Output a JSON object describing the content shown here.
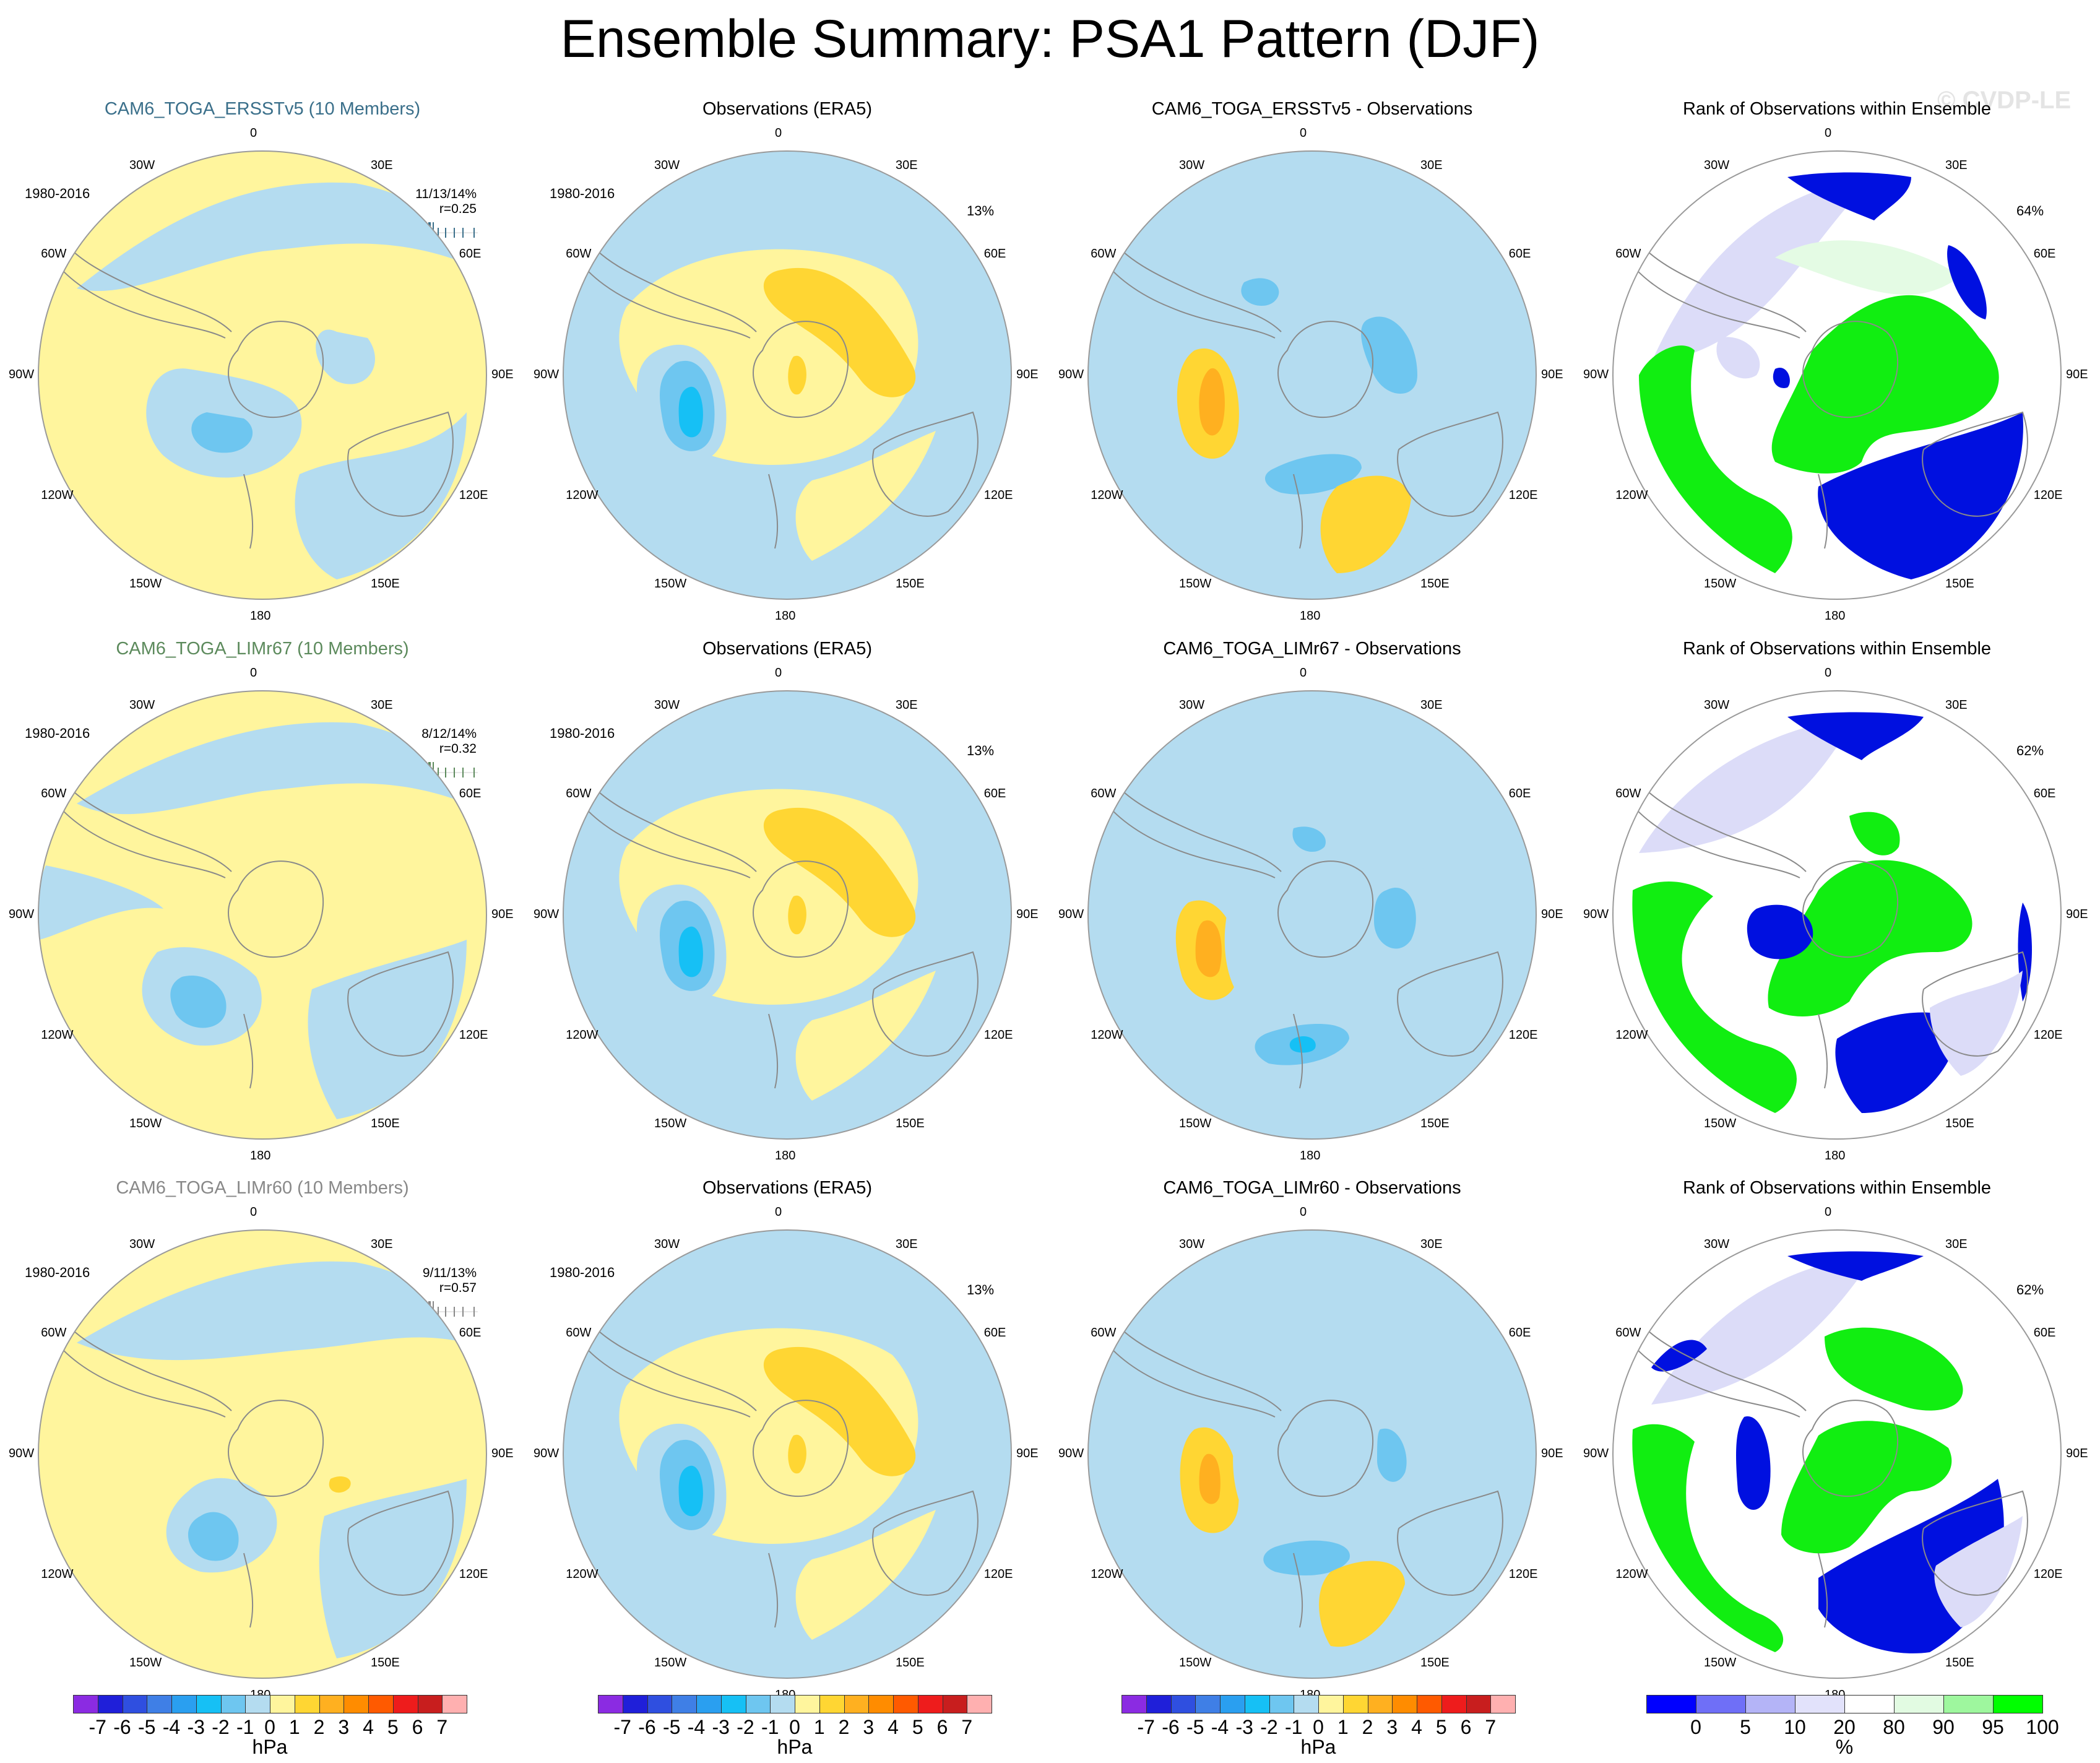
{
  "figure": {
    "title": "Ensemble Summary: PSA1 Pattern (DJF)",
    "watermark": "© CVDP-LE"
  },
  "colors": {
    "title_ensemble_1": "#3a6f8a",
    "title_ensemble_2": "#5c8a5c",
    "title_ensemble_3": "#888888",
    "land_outline": "#8a8a8a",
    "map_border": "#9a9a9a"
  },
  "longitude_labels": [
    "0",
    "30E",
    "60E",
    "90E",
    "120E",
    "150E",
    "180",
    "150W",
    "120W",
    "90W",
    "60W",
    "30W"
  ],
  "rows": [
    {
      "ensemble": {
        "title": "CAM6_TOGA_ERSSTv5 (10 Members)",
        "period": "1980-2016",
        "stat_line1": "11/13/14%",
        "stat_line2": "r=0.25",
        "color_key": "title_ensemble_1"
      },
      "observations": {
        "title": "Observations (ERA5)",
        "period": "1980-2016",
        "pct": "13%"
      },
      "difference": {
        "title": "CAM6_TOGA_ERSSTv5 - Observations"
      },
      "rank": {
        "title": "Rank of Observations within Ensemble",
        "pct": "64%"
      }
    },
    {
      "ensemble": {
        "title": "CAM6_TOGA_LIMr67 (10 Members)",
        "period": "1980-2016",
        "stat_line1": "8/12/14%",
        "stat_line2": "r=0.32",
        "color_key": "title_ensemble_2"
      },
      "observations": {
        "title": "Observations (ERA5)",
        "period": "1980-2016",
        "pct": "13%"
      },
      "difference": {
        "title": "CAM6_TOGA_LIMr67 - Observations"
      },
      "rank": {
        "title": "Rank of Observations within Ensemble",
        "pct": "62%"
      }
    },
    {
      "ensemble": {
        "title": "CAM6_TOGA_LIMr60 (10 Members)",
        "period": "1980-2016",
        "stat_line1": "9/11/13%",
        "stat_line2": "r=0.57",
        "color_key": "title_ensemble_3"
      },
      "observations": {
        "title": "Observations (ERA5)",
        "period": "1980-2016",
        "pct": "13%"
      },
      "difference": {
        "title": "CAM6_TOGA_LIMr60 - Observations"
      },
      "rank": {
        "title": "Rank of Observations within Ensemble",
        "pct": "62%"
      }
    }
  ],
  "colorbar_hpa": {
    "unit": "hPa",
    "ticks": [
      "-7",
      "-6",
      "-5",
      "-4",
      "-3",
      "-2",
      "-1",
      "0",
      "1",
      "2",
      "3",
      "4",
      "5",
      "6",
      "7"
    ],
    "colors": [
      "#8b2be2",
      "#1f1fd9",
      "#2f4fe0",
      "#3f7fe6",
      "#2a9ff0",
      "#16c0f5",
      "#6ec6f0",
      "#b4dcf0",
      "#fff59d",
      "#ffd633",
      "#ffb020",
      "#ff8c00",
      "#ff5a00",
      "#ee1c1c",
      "#c81e1e",
      "#ffb0b0"
    ]
  },
  "colorbar_rank": {
    "unit": "%",
    "ticks": [
      "0",
      "5",
      "10",
      "20",
      "80",
      "90",
      "95",
      "100"
    ],
    "colors": [
      "#0000ff",
      "#6f6ff7",
      "#b4b4f7",
      "#e2e2fb",
      "#ffffff",
      "#e2fbe2",
      "#9ef79e",
      "#00ff00"
    ]
  },
  "rank_colors": {
    "low": "#0010e0",
    "lowmid": "#dcdcf8",
    "high": "#11ee11",
    "highmid": "#e4fbe4"
  },
  "contour_colors": {
    "neg1": "#b4dcf0",
    "neg2": "#6ec6f0",
    "neg3": "#16c0f5",
    "pos1": "#fff59d",
    "pos2": "#ffd633",
    "pos3": "#ffb020"
  }
}
